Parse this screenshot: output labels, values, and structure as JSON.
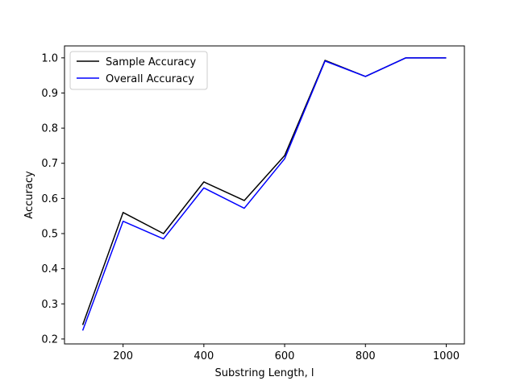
{
  "chart_data": {
    "type": "line",
    "title": "",
    "xlabel": "Substring Length, l",
    "ylabel": "Accuracy",
    "x": [
      100,
      200,
      300,
      400,
      500,
      600,
      700,
      800,
      900,
      1000
    ],
    "xlim": [
      55,
      1045
    ],
    "ylim": [
      0.186,
      1.034
    ],
    "xticks": [
      200,
      400,
      600,
      800,
      1000
    ],
    "yticks": [
      0.2,
      0.3,
      0.4,
      0.5,
      0.6,
      0.7,
      0.8,
      0.9,
      1.0
    ],
    "xtick_labels": [
      "200",
      "400",
      "600",
      "800",
      "1000"
    ],
    "ytick_labels": [
      "0.2",
      "0.3",
      "0.4",
      "0.5",
      "0.6",
      "0.7",
      "0.8",
      "0.9",
      "1.0"
    ],
    "grid": false,
    "legend_position": "upper-left",
    "series": [
      {
        "name": "Sample Accuracy",
        "color": "#000000",
        "values": [
          0.24,
          0.56,
          0.5,
          0.647,
          0.594,
          0.722,
          0.993,
          0.947,
          1.0,
          1.0
        ]
      },
      {
        "name": "Overall Accuracy",
        "color": "#0000ff",
        "values": [
          0.224,
          0.535,
          0.485,
          0.63,
          0.572,
          0.713,
          0.991,
          0.947,
          1.0,
          1.0
        ]
      }
    ]
  }
}
